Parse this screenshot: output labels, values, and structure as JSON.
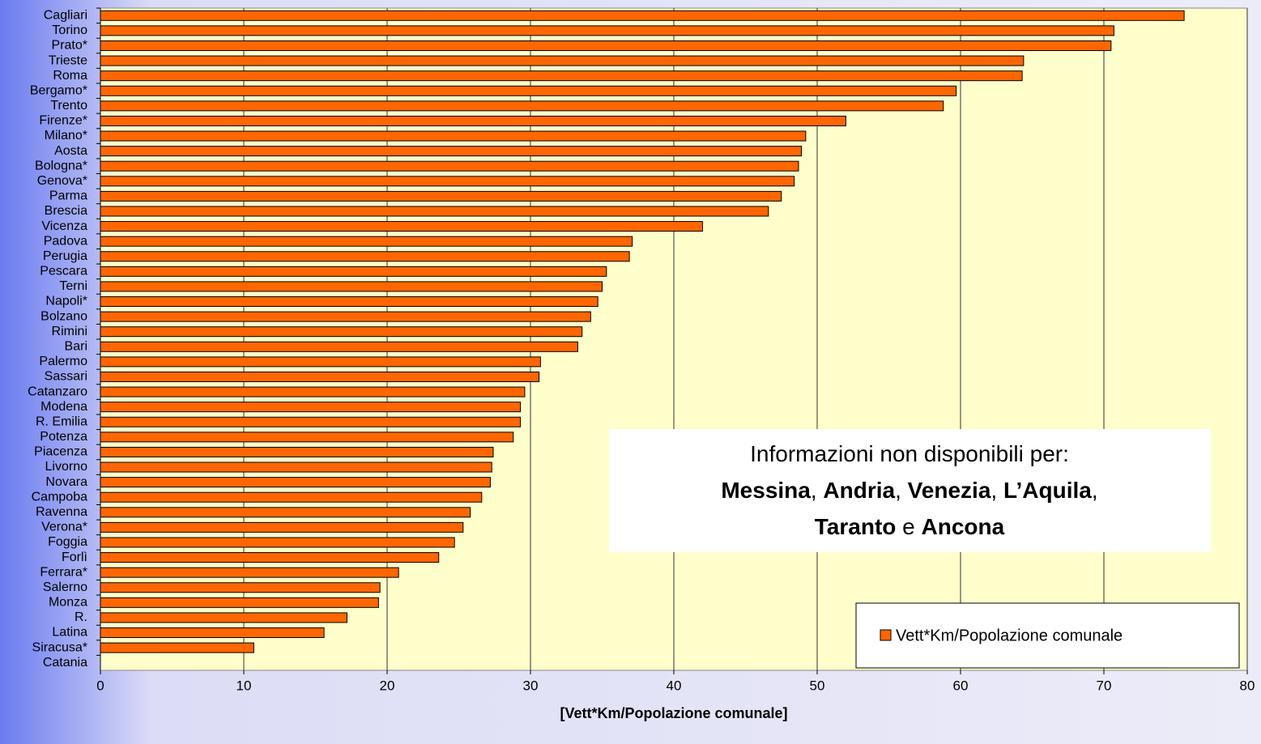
{
  "chart_data": {
    "type": "bar",
    "orientation": "horizontal",
    "categories": [
      "Cagliari",
      "Torino",
      "Prato*",
      "Trieste",
      "Roma",
      "Bergamo*",
      "Trento",
      "Firenze*",
      "Milano*",
      "Aosta",
      "Bologna*",
      "Genova*",
      "Parma",
      "Brescia",
      "Vicenza",
      "Padova",
      "Perugia",
      "Pescara",
      "Terni",
      "Napoli*",
      "Bolzano",
      "Rimini",
      "Bari",
      "Palermo",
      "Sassari",
      "Catanzaro",
      "Modena",
      "R. Emilia",
      "Potenza",
      "Piacenza",
      "Livorno",
      "Novara",
      "Campoba",
      "Ravenna",
      "Verona*",
      "Foggia",
      "Forlì",
      "Ferrara*",
      "Salerno",
      "Monza",
      "R.",
      "Latina",
      "Siracusa*",
      "Catania"
    ],
    "series": [
      {
        "name": "Vett*Km/Popolazione comunale",
        "color": "#ff6600",
        "values": [
          75.6,
          70.7,
          70.5,
          64.4,
          64.3,
          59.7,
          58.8,
          52.0,
          49.2,
          48.9,
          48.7,
          48.4,
          47.5,
          46.6,
          42.0,
          37.1,
          36.9,
          35.3,
          35.0,
          34.7,
          34.2,
          33.6,
          33.3,
          30.7,
          30.6,
          29.6,
          29.3,
          29.3,
          28.8,
          27.4,
          27.3,
          27.2,
          26.6,
          25.8,
          25.3,
          24.7,
          23.6,
          20.8,
          19.5,
          19.4,
          17.2,
          15.6,
          10.7,
          0
        ]
      }
    ],
    "xlim": [
      0,
      80
    ],
    "xticks": [
      0,
      10,
      20,
      30,
      40,
      50,
      60,
      70,
      80
    ],
    "grid": true,
    "xlabel": "[Vett*Km/Popolazione comunale]",
    "legend": "lower right",
    "annotation": [
      [
        {
          "text": "Informazioni non disponibili per:",
          "bold": false
        }
      ],
      [
        {
          "text": "Messina",
          "bold": true
        },
        {
          "text": ", ",
          "bold": false
        },
        {
          "text": "Andria",
          "bold": true
        },
        {
          "text": ", ",
          "bold": false
        },
        {
          "text": "Venezia",
          "bold": true
        },
        {
          "text": ", ",
          "bold": false
        },
        {
          "text": "L’Aquila",
          "bold": true
        },
        {
          "text": ",",
          "bold": false
        }
      ],
      [
        {
          "text": "Taranto",
          "bold": true
        },
        {
          "text": " e ",
          "bold": false
        },
        {
          "text": "Ancona",
          "bold": true
        }
      ]
    ]
  }
}
